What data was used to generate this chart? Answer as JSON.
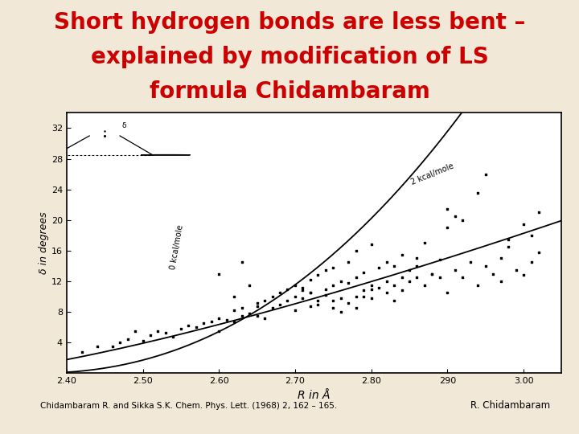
{
  "title_line1": "Short hydrogen bonds are less bent –",
  "title_line2": "explained by modification of LS",
  "title_line3": "formula Chidambaram",
  "title_color": "#cc0000",
  "title_fontsize": 20,
  "bg_color": "#f2e8d8",
  "plot_bg": "#ffffff",
  "xlabel": "R in Å",
  "ylabel": "δ in degrees",
  "xlim": [
    2.4,
    3.05
  ],
  "ylim": [
    0,
    34
  ],
  "xticks": [
    2.4,
    2.5,
    2.6,
    2.7,
    2.8,
    2.9,
    3.0
  ],
  "yticks": [
    4,
    8,
    12,
    16,
    20,
    24,
    28,
    32
  ],
  "citation": "Chidambaram R. and Sikka S.K. Chem. Phys. Lett. (1968) 2, 162 – 165.",
  "author": "R. Chidambaram",
  "curve1_label": "0 kcal/mole",
  "curve2_label": "2 kcal/mole",
  "scatter_x": [
    2.42,
    2.44,
    2.48,
    2.5,
    2.51,
    2.52,
    2.53,
    2.54,
    2.55,
    2.56,
    2.57,
    2.58,
    2.59,
    2.6,
    2.6,
    2.61,
    2.62,
    2.62,
    2.63,
    2.63,
    2.64,
    2.65,
    2.65,
    2.65,
    2.66,
    2.66,
    2.67,
    2.67,
    2.68,
    2.68,
    2.69,
    2.69,
    2.7,
    2.7,
    2.7,
    2.71,
    2.71,
    2.71,
    2.72,
    2.72,
    2.72,
    2.73,
    2.73,
    2.74,
    2.74,
    2.74,
    2.75,
    2.75,
    2.75,
    2.76,
    2.76,
    2.77,
    2.77,
    2.77,
    2.78,
    2.78,
    2.78,
    2.79,
    2.79,
    2.8,
    2.8,
    2.8,
    2.81,
    2.81,
    2.82,
    2.82,
    2.83,
    2.83,
    2.84,
    2.84,
    2.85,
    2.85,
    2.86,
    2.86,
    2.87,
    2.87,
    2.88,
    2.89,
    2.9,
    2.9,
    2.91,
    2.91,
    2.92,
    2.93,
    2.94,
    2.95,
    2.96,
    2.97,
    2.97,
    2.98,
    2.99,
    3.0,
    3.01,
    3.01,
    3.02,
    2.46,
    2.47,
    2.49,
    2.6,
    2.62,
    2.63,
    2.64,
    2.72,
    2.73,
    2.75,
    2.76,
    2.78,
    2.79,
    2.8,
    2.82,
    2.83,
    2.84,
    2.86,
    2.88,
    2.89,
    2.9,
    2.92,
    2.94,
    2.95,
    2.98,
    3.0,
    3.02
  ],
  "scatter_y": [
    2.8,
    3.5,
    4.5,
    4.2,
    5.0,
    5.5,
    5.3,
    4.8,
    5.8,
    6.2,
    6.0,
    6.5,
    6.8,
    5.5,
    7.2,
    7.0,
    6.8,
    8.2,
    7.5,
    8.5,
    7.8,
    7.5,
    8.8,
    9.2,
    7.2,
    9.5,
    8.5,
    10.0,
    9.0,
    10.5,
    9.5,
    11.0,
    8.2,
    10.0,
    11.5,
    9.8,
    11.2,
    10.8,
    8.8,
    12.2,
    10.5,
    9.5,
    12.8,
    10.2,
    13.5,
    11.0,
    8.5,
    11.5,
    13.8,
    9.8,
    12.0,
    9.2,
    11.8,
    14.5,
    10.0,
    12.5,
    16.0,
    10.8,
    13.2,
    9.8,
    11.5,
    16.8,
    11.2,
    13.8,
    10.5,
    14.5,
    11.5,
    14.0,
    10.8,
    15.5,
    12.0,
    13.5,
    12.5,
    15.0,
    11.5,
    17.0,
    13.0,
    12.5,
    10.5,
    19.0,
    13.5,
    20.5,
    12.5,
    14.5,
    11.5,
    14.0,
    13.0,
    15.0,
    12.0,
    16.5,
    13.5,
    12.8,
    18.0,
    14.5,
    15.8,
    3.5,
    4.0,
    5.5,
    13.0,
    10.0,
    14.5,
    11.5,
    10.5,
    9.0,
    9.5,
    8.0,
    8.5,
    10.0,
    11.0,
    12.0,
    9.5,
    12.5,
    14.0,
    13.0,
    14.8,
    21.5,
    20.0,
    23.5,
    26.0,
    17.5,
    19.5,
    21.0
  ]
}
